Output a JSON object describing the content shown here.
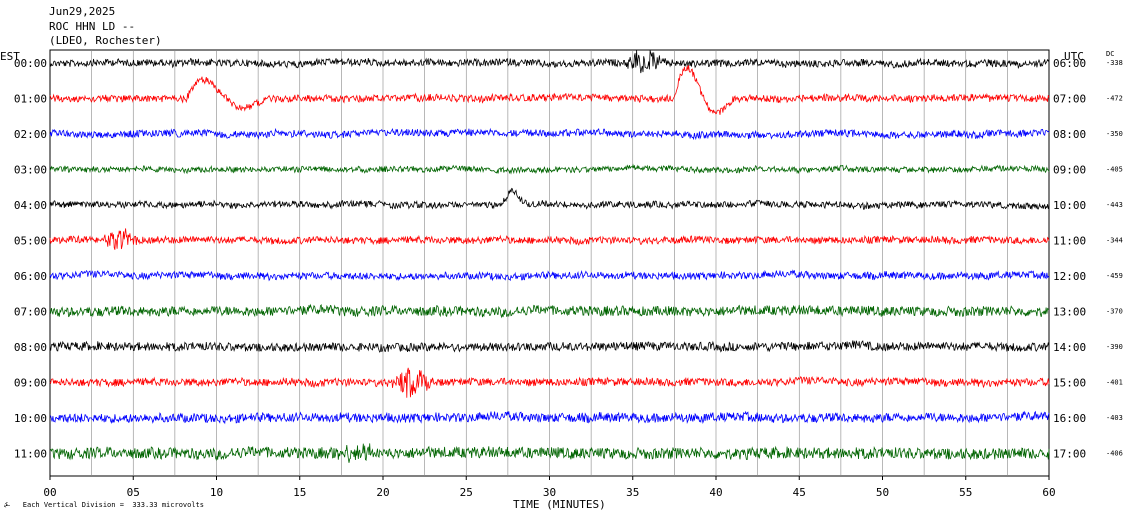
{
  "header": {
    "date": "Jun29,2025",
    "station": "ROC HHN LD --",
    "network": "(LDEO, Rochester)"
  },
  "labels": {
    "left_zone": "EST",
    "right_zone": "UTC",
    "dc_header": "DC",
    "x_axis_title": "TIME (MINUTES)",
    "footer": "Each Vertical Division =  333.33 microvolts"
  },
  "chart_data": {
    "type": "line",
    "title": "",
    "xlabel": "TIME (MINUTES)",
    "ylabel": "",
    "xlim": [
      0,
      60
    ],
    "x_ticks": [
      "00",
      "05",
      "10",
      "15",
      "20",
      "25",
      "30",
      "35",
      "40",
      "45",
      "50",
      "55",
      "60"
    ],
    "vertical_gridlines_every_minutes": 2.5,
    "trace_colors": [
      "#000000",
      "#ff0000",
      "#0000ff",
      "#006400"
    ],
    "traces": [
      {
        "est": "00:00",
        "utc": "06:00",
        "dc": "-338"
      },
      {
        "est": "01:00",
        "utc": "07:00",
        "dc": "-472"
      },
      {
        "est": "02:00",
        "utc": "08:00",
        "dc": "-350"
      },
      {
        "est": "03:00",
        "utc": "09:00",
        "dc": "-405"
      },
      {
        "est": "04:00",
        "utc": "10:00",
        "dc": "-443"
      },
      {
        "est": "05:00",
        "utc": "11:00",
        "dc": "-344"
      },
      {
        "est": "06:00",
        "utc": "12:00",
        "dc": "-459"
      },
      {
        "est": "07:00",
        "utc": "13:00",
        "dc": "-370"
      },
      {
        "est": "08:00",
        "utc": "14:00",
        "dc": "-390"
      },
      {
        "est": "09:00",
        "utc": "15:00",
        "dc": "-401"
      },
      {
        "est": "10:00",
        "utc": "16:00",
        "dc": "-403"
      },
      {
        "est": "11:00",
        "utc": "17:00",
        "dc": "-406"
      }
    ],
    "noise_level_per_trace": [
      1,
      1,
      1,
      0.8,
      0.9,
      1,
      1,
      1.4,
      1.2,
      1.1,
      1.3,
      1.6
    ],
    "events": [
      {
        "trace": 0,
        "minute_start": 34.5,
        "minute_end": 37,
        "type": "burst",
        "amplitude": 3
      },
      {
        "trace": 1,
        "minute_start": 8.2,
        "minute_end": 13,
        "type": "large-excursion",
        "amplitude": 9
      },
      {
        "trace": 1,
        "minute_start": 37.5,
        "minute_end": 41,
        "type": "large-excursion",
        "amplitude": 14
      },
      {
        "trace": 4,
        "minute_start": 27,
        "minute_end": 29,
        "type": "bump",
        "amplitude": 5
      },
      {
        "trace": 5,
        "minute_start": 3,
        "minute_end": 5.5,
        "type": "burst",
        "amplitude": 3
      },
      {
        "trace": 9,
        "minute_start": 20.5,
        "minute_end": 23,
        "type": "burst",
        "amplitude": 4
      },
      {
        "trace": 11,
        "minute_start": 17,
        "minute_end": 20,
        "type": "burst",
        "amplitude": 2
      }
    ]
  }
}
